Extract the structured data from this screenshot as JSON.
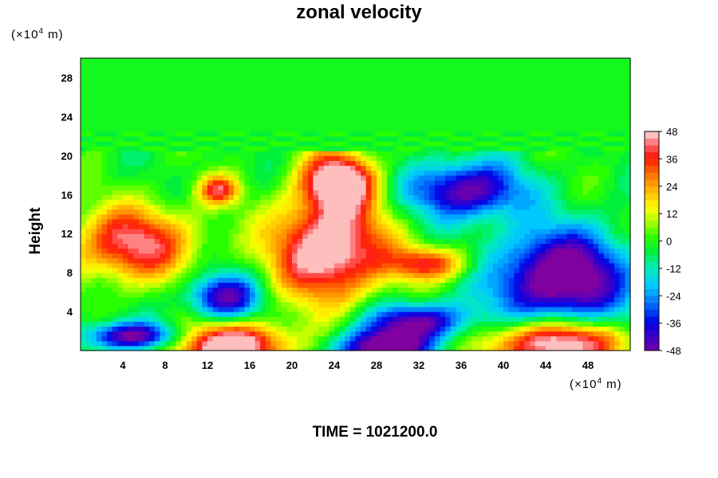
{
  "title": "zonal velocity",
  "y_unit": {
    "base": "(×10",
    "exp": "4",
    "tail": " m)"
  },
  "x_unit": {
    "base": "(×10",
    "exp": "4",
    "tail": " m)"
  },
  "time_label": "TIME = 1021200.0",
  "chart_data": {
    "type": "heatmap",
    "title": "zonal velocity",
    "xlabel": "",
    "ylabel": "Height",
    "x_unit": "(×10^4 m)",
    "y_unit": "(×10^4 m)",
    "xlim": [
      0,
      52
    ],
    "ylim": [
      0,
      30
    ],
    "x_ticks": [
      4,
      8,
      12,
      16,
      20,
      24,
      28,
      32,
      36,
      40,
      44,
      48
    ],
    "y_ticks": [
      4,
      8,
      12,
      16,
      20,
      24,
      28
    ],
    "colorbar": {
      "min": -48,
      "max": 48,
      "tick_values": [
        -48,
        -36,
        -24,
        -12,
        0,
        12,
        24,
        36,
        48
      ],
      "tick_labels": [
        "-48",
        "-36",
        "-24",
        "-12",
        "0",
        "12",
        "24",
        "36",
        "48"
      ],
      "colormap": "rainbow: purple → blue → cyan → green → yellow → orange → red → pink"
    },
    "background_value": 0,
    "features": [
      {
        "kind": "core",
        "x": 23.5,
        "y": 10.5,
        "value": 48,
        "rx": 5.5,
        "ry": 5.5
      },
      {
        "kind": "core",
        "x": 24.5,
        "y": 17.5,
        "value": 46,
        "rx": 3.5,
        "ry": 3
      },
      {
        "kind": "core",
        "x": 14,
        "y": 0.5,
        "value": 48,
        "rx": 6,
        "ry": 2.5
      },
      {
        "kind": "core",
        "x": 45,
        "y": 0.8,
        "value": 48,
        "rx": 6.5,
        "ry": 2.5
      },
      {
        "kind": "core",
        "x": 5,
        "y": 11,
        "value": 36,
        "rx": 6,
        "ry": 4
      },
      {
        "kind": "core",
        "x": 33,
        "y": 9,
        "value": 30,
        "rx": 4,
        "ry": 1.8
      },
      {
        "kind": "core",
        "x": 13,
        "y": 16.5,
        "value": 30,
        "rx": 2,
        "ry": 1.5
      },
      {
        "kind": "core",
        "x": 45.5,
        "y": 7.5,
        "value": -48,
        "rx": 6.5,
        "ry": 5
      },
      {
        "kind": "core",
        "x": 36.5,
        "y": 16.5,
        "value": -38,
        "rx": 5.5,
        "ry": 3
      },
      {
        "kind": "core",
        "x": 13.5,
        "y": 5.5,
        "value": -36,
        "rx": 3.5,
        "ry": 2.5
      },
      {
        "kind": "core",
        "x": 28.5,
        "y": 0.2,
        "value": -46,
        "rx": 4.5,
        "ry": 2
      },
      {
        "kind": "core",
        "x": 5,
        "y": 1.5,
        "value": -40,
        "rx": 5,
        "ry": 1.5
      },
      {
        "kind": "core",
        "x": 32,
        "y": 3,
        "value": -36,
        "rx": 5,
        "ry": 2
      }
    ]
  }
}
